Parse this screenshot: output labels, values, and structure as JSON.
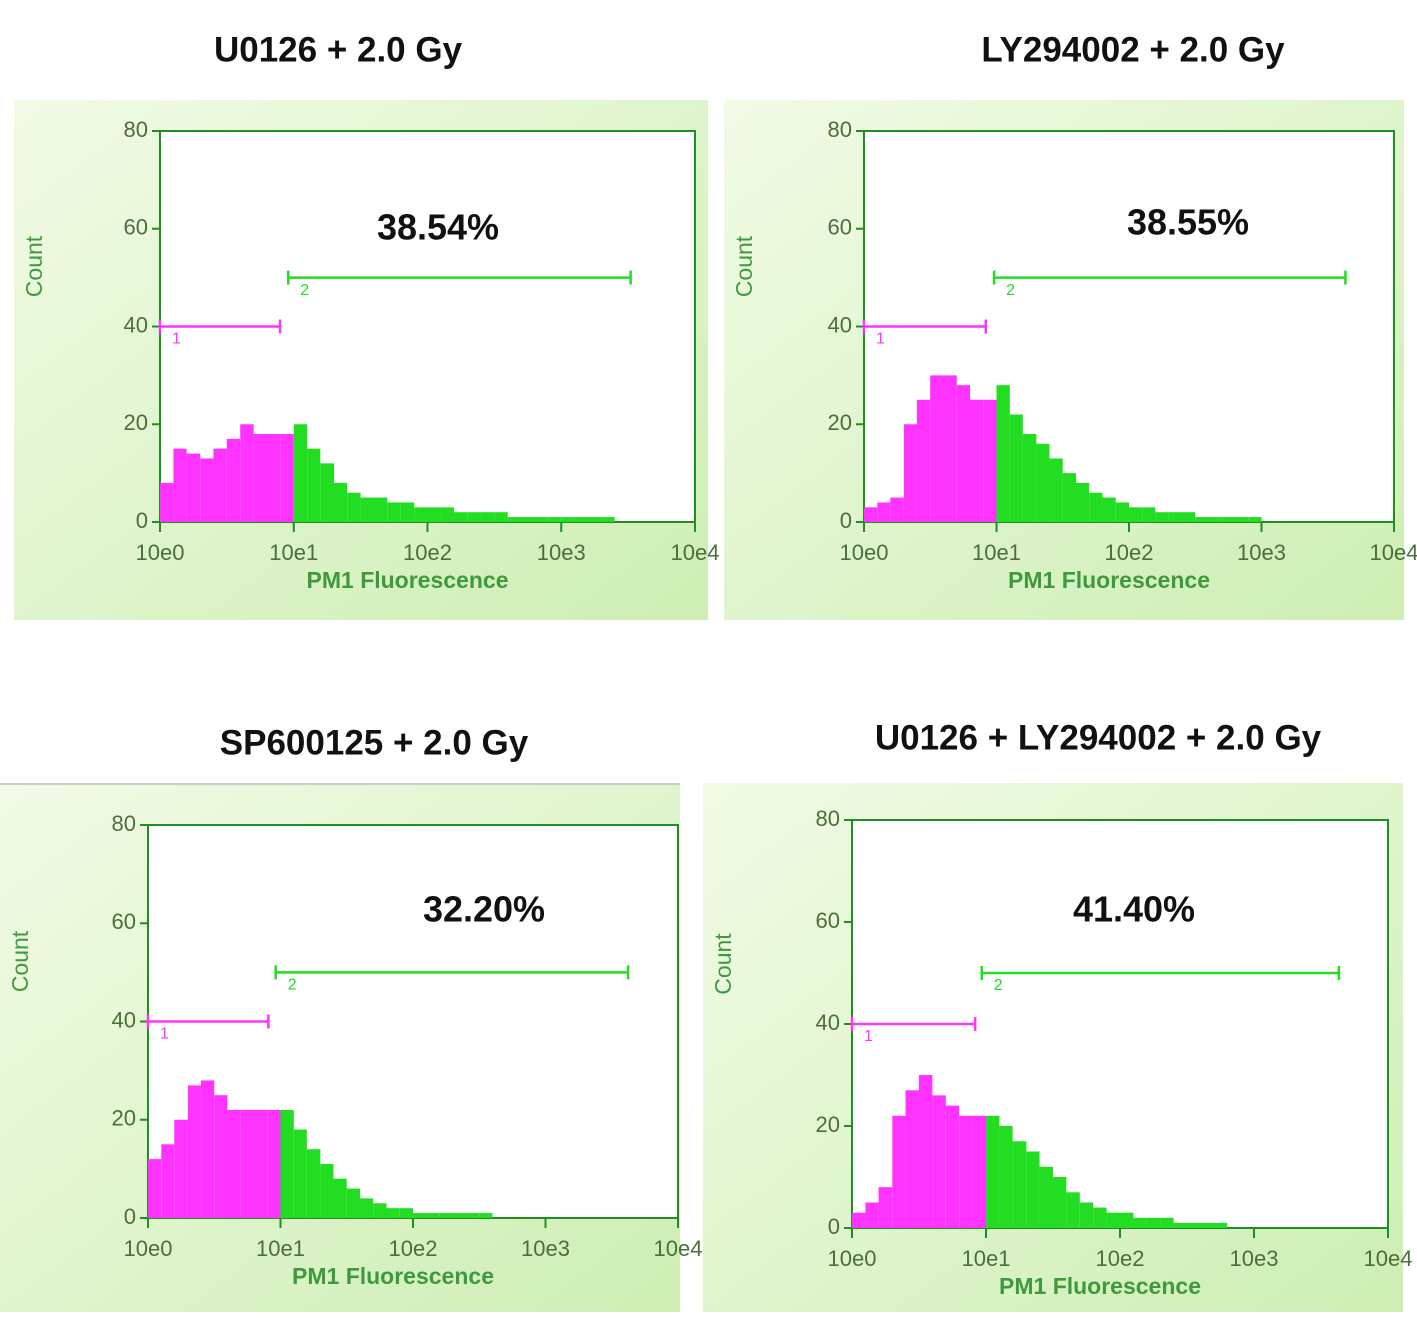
{
  "chart_data": [
    {
      "type": "histogram",
      "title": "U0126 + 2.0 Gy",
      "annotation": "38.54%",
      "xlabel": "PM1 Fluorescence",
      "ylabel": "Count",
      "xscale": "log",
      "xlim": [
        1,
        10000
      ],
      "ylim": [
        0,
        80
      ],
      "xticks": [
        {
          "value": 1,
          "label": "10e0"
        },
        {
          "value": 10,
          "label": "10e1"
        },
        {
          "value": 100,
          "label": "10e2"
        },
        {
          "value": 1000,
          "label": "10e3"
        },
        {
          "value": 10000,
          "label": "10e4"
        }
      ],
      "yticks": [
        0,
        20,
        40,
        60,
        80
      ],
      "bins": [
        1,
        1.26,
        1.58,
        2,
        2.51,
        3.16,
        3.98,
        5.01,
        6.31,
        7.94,
        10,
        12.6,
        15.8,
        20,
        25.1,
        31.6,
        39.8,
        50.1,
        63.1,
        79.4,
        100,
        126,
        158,
        200,
        251,
        316,
        398,
        501,
        631,
        794,
        1000,
        1259,
        1585,
        1995,
        2512,
        3162,
        3981,
        5012,
        6310,
        7943,
        10000
      ],
      "values": [
        8,
        15,
        14,
        13,
        15,
        17,
        20,
        18,
        18,
        18,
        20,
        15,
        12,
        8,
        6,
        5,
        5,
        4,
        4,
        3,
        3,
        3,
        2,
        2,
        2,
        2,
        1,
        1,
        1,
        1,
        1,
        1,
        1,
        1,
        0,
        0,
        0,
        0,
        0,
        0
      ],
      "gates": [
        {
          "label": "1",
          "range": [
            1,
            7.9
          ],
          "y": 40,
          "color": "#ff33ff"
        },
        {
          "label": "2",
          "range": [
            9.1,
            3300
          ],
          "y": 50,
          "color": "#22dd22"
        }
      ]
    },
    {
      "type": "histogram",
      "title": "LY294002 + 2.0 Gy",
      "annotation": "38.55%",
      "xlabel": "PM1 Fluorescence",
      "ylabel": "Count",
      "xscale": "log",
      "xlim": [
        1,
        10000
      ],
      "ylim": [
        0,
        80
      ],
      "xticks": [
        {
          "value": 1,
          "label": "10e0"
        },
        {
          "value": 10,
          "label": "10e1"
        },
        {
          "value": 100,
          "label": "10e2"
        },
        {
          "value": 1000,
          "label": "10e3"
        },
        {
          "value": 10000,
          "label": "10e4"
        }
      ],
      "yticks": [
        0,
        20,
        40,
        60,
        80
      ],
      "bins": [
        1,
        1.26,
        1.58,
        2,
        2.51,
        3.16,
        3.98,
        5.01,
        6.31,
        7.94,
        10,
        12.6,
        15.8,
        20,
        25.1,
        31.6,
        39.8,
        50.1,
        63.1,
        79.4,
        100,
        126,
        158,
        200,
        251,
        316,
        398,
        501,
        631,
        794,
        1000,
        1259,
        1585,
        1995,
        2512,
        3162,
        3981,
        5012,
        6310,
        7943,
        10000
      ],
      "values": [
        3,
        4,
        5,
        20,
        25,
        30,
        30,
        28,
        25,
        25,
        28,
        22,
        18,
        16,
        13,
        10,
        8,
        6,
        5,
        4,
        3,
        3,
        2,
        2,
        2,
        1,
        1,
        1,
        1,
        1,
        0,
        0,
        0,
        0,
        0,
        0,
        0,
        0,
        0,
        0
      ],
      "gates": [
        {
          "label": "1",
          "range": [
            1,
            8.3
          ],
          "y": 40,
          "color": "#ff33ff"
        },
        {
          "label": "2",
          "range": [
            9.6,
            4300
          ],
          "y": 50,
          "color": "#22dd22"
        }
      ]
    },
    {
      "type": "histogram",
      "title": "SP600125 + 2.0 Gy",
      "annotation": "32.20%",
      "xlabel": "PM1 Fluorescence",
      "ylabel": "Count",
      "xscale": "log",
      "xlim": [
        1,
        10000
      ],
      "ylim": [
        0,
        80
      ],
      "xticks": [
        {
          "value": 1,
          "label": "10e0"
        },
        {
          "value": 10,
          "label": "10e1"
        },
        {
          "value": 100,
          "label": "10e2"
        },
        {
          "value": 1000,
          "label": "10e3"
        },
        {
          "value": 10000,
          "label": "10e4"
        }
      ],
      "yticks": [
        0,
        20,
        40,
        60,
        80
      ],
      "bins": [
        1,
        1.26,
        1.58,
        2,
        2.51,
        3.16,
        3.98,
        5.01,
        6.31,
        7.94,
        10,
        12.6,
        15.8,
        20,
        25.1,
        31.6,
        39.8,
        50.1,
        63.1,
        79.4,
        100,
        126,
        158,
        200,
        251,
        316,
        398,
        501,
        631,
        794,
        1000,
        1259,
        1585,
        1995,
        2512,
        3162,
        3981,
        5012,
        6310,
        7943,
        10000
      ],
      "values": [
        12,
        15,
        20,
        27,
        28,
        25,
        22,
        22,
        22,
        22,
        22,
        18,
        14,
        11,
        8,
        6,
        4,
        3,
        2,
        2,
        1,
        1,
        1,
        1,
        1,
        1,
        0,
        0,
        0,
        0,
        0,
        0,
        0,
        0,
        0,
        0,
        0,
        0,
        0,
        0
      ],
      "gates": [
        {
          "label": "1",
          "range": [
            1,
            8.1
          ],
          "y": 40,
          "color": "#ff33ff"
        },
        {
          "label": "2",
          "range": [
            9.2,
            4200
          ],
          "y": 50,
          "color": "#22dd22"
        }
      ]
    },
    {
      "type": "histogram",
      "title": "U0126 + LY294002 + 2.0 Gy",
      "annotation": "41.40%",
      "xlabel": "PM1 Fluorescence",
      "ylabel": "Count",
      "xscale": "log",
      "xlim": [
        1,
        10000
      ],
      "ylim": [
        0,
        80
      ],
      "xticks": [
        {
          "value": 1,
          "label": "10e0"
        },
        {
          "value": 10,
          "label": "10e1"
        },
        {
          "value": 100,
          "label": "10e2"
        },
        {
          "value": 1000,
          "label": "10e3"
        },
        {
          "value": 10000,
          "label": "10e4"
        }
      ],
      "yticks": [
        0,
        20,
        40,
        60,
        80
      ],
      "bins": [
        1,
        1.26,
        1.58,
        2,
        2.51,
        3.16,
        3.98,
        5.01,
        6.31,
        7.94,
        10,
        12.6,
        15.8,
        20,
        25.1,
        31.6,
        39.8,
        50.1,
        63.1,
        79.4,
        100,
        126,
        158,
        200,
        251,
        316,
        398,
        501,
        631,
        794,
        1000,
        1259,
        1585,
        1995,
        2512,
        3162,
        3981,
        5012,
        6310,
        7943,
        10000
      ],
      "values": [
        3,
        5,
        8,
        22,
        27,
        30,
        26,
        24,
        22,
        22,
        22,
        20,
        17,
        15,
        12,
        10,
        7,
        5,
        4,
        3,
        3,
        2,
        2,
        2,
        1,
        1,
        1,
        1,
        0,
        0,
        0,
        0,
        0,
        0,
        0,
        0,
        0,
        0,
        0,
        0
      ],
      "gates": [
        {
          "label": "1",
          "range": [
            1,
            8.3
          ],
          "y": 40,
          "color": "#ff33ff"
        },
        {
          "label": "2",
          "range": [
            9.3,
            4300
          ],
          "y": 50,
          "color": "#22dd22"
        }
      ]
    }
  ]
}
